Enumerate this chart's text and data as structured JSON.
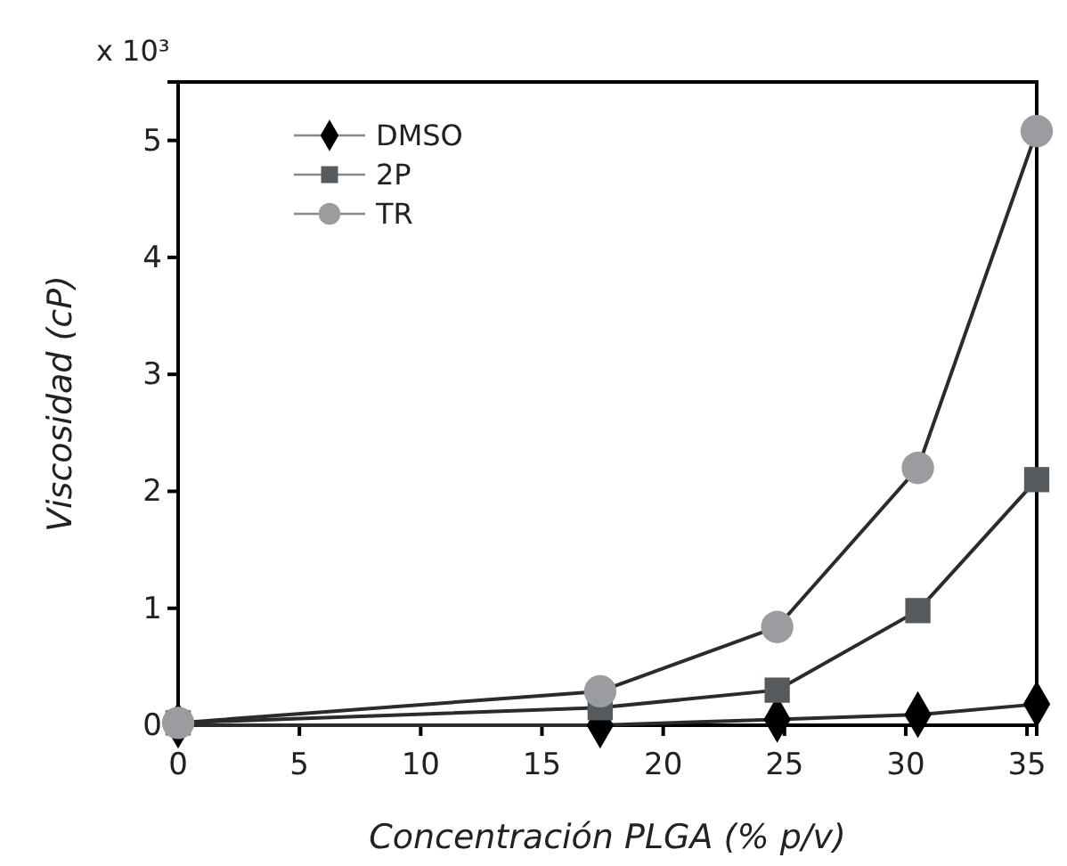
{
  "chart_data": {
    "type": "line",
    "xlabel": "Concentración PLGA (% p/v)",
    "ylabel": "Viscosidad (cP)",
    "annotations": [
      "x 10³"
    ],
    "x": [
      0,
      17.4,
      24.7,
      30.5,
      35.4
    ],
    "series": [
      {
        "name": "DMSO",
        "color": "#000000",
        "marker": "diamond",
        "values": [
          0,
          0,
          0.05,
          0.09,
          0.18
        ]
      },
      {
        "name": "2P",
        "color": "#555a5e",
        "marker": "square",
        "values": [
          0.02,
          0.15,
          0.3,
          0.98,
          2.1
        ]
      },
      {
        "name": "TR",
        "color": "#9a9ca0",
        "marker": "circle",
        "values": [
          0.02,
          0.29,
          0.84,
          2.2,
          5.08
        ]
      }
    ],
    "xlim": [
      0,
      35.4
    ],
    "xticks": [
      0,
      5,
      10,
      15,
      20,
      25,
      30,
      35
    ],
    "ylim": [
      0,
      5.5
    ],
    "yticks": [
      0,
      1,
      2,
      3,
      4,
      5
    ],
    "grid": false,
    "legend": "top left",
    "line_style": "solid"
  }
}
